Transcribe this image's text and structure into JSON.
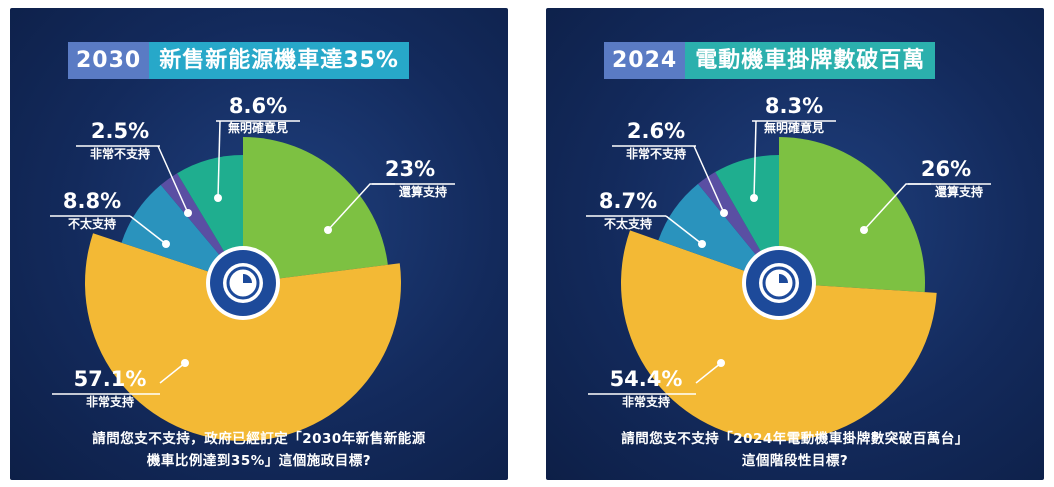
{
  "panels": [
    {
      "title_year": "2030",
      "title_main": "新售新能源機車達35%",
      "question_line1": "請問您支不支持，政府已經訂定「2030年新售新能源",
      "question_line2": "機車比例達到35%」這個施政目標?"
    },
    {
      "title_year": "2024",
      "title_main": "電動機車掛牌數破百萬",
      "question_line1": "請問您支不支持「2024年電動機車掛牌數突破百萬台」",
      "question_line2": "這個階段性目標?"
    }
  ],
  "colors": {
    "support_somewhat": "#7dc142",
    "support_strong": "#f3b935",
    "not_much": "#2a93bd",
    "strongly_oppose": "#5a4fa3",
    "no_opinion": "#1fae8f"
  },
  "chart_data": [
    {
      "type": "pie",
      "slices": [
        {
          "label": "還算支持",
          "value_text": "23%",
          "value": 23
        },
        {
          "label": "非常支持",
          "value_text": "57.1%",
          "value": 57.1
        },
        {
          "label": "不太支持",
          "value_text": "8.8%",
          "value": 8.8
        },
        {
          "label": "非常不支持",
          "value_text": "2.5%",
          "value": 2.5
        },
        {
          "label": "無明確意見",
          "value_text": "8.6%",
          "value": 8.6
        }
      ]
    },
    {
      "type": "pie",
      "slices": [
        {
          "label": "還算支持",
          "value_text": "26%",
          "value": 26
        },
        {
          "label": "非常支持",
          "value_text": "54.4%",
          "value": 54.4
        },
        {
          "label": "不太支持",
          "value_text": "8.7%",
          "value": 8.7
        },
        {
          "label": "非常不支持",
          "value_text": "2.6%",
          "value": 2.6
        },
        {
          "label": "無明確意見",
          "value_text": "8.3%",
          "value": 8.3
        }
      ]
    }
  ]
}
